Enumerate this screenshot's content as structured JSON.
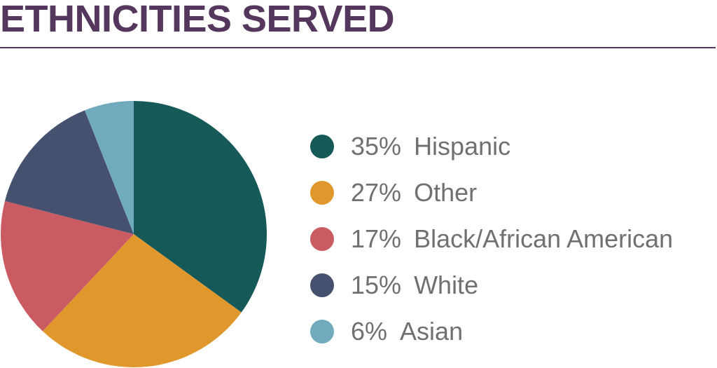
{
  "title": "ETHNICITIES SERVED",
  "colors": {
    "title": "#55365c",
    "rule": "#55365c",
    "legend_text": "#707070"
  },
  "chart_data": {
    "type": "pie",
    "title": "ETHNICITIES SERVED",
    "categories": [
      "Hispanic",
      "Other",
      "Black/African American",
      "White",
      "Asian"
    ],
    "values": [
      35,
      27,
      17,
      15,
      6
    ],
    "value_labels": [
      "35%",
      "27%",
      "17%",
      "15%",
      "6%"
    ],
    "colors": [
      "#155a58",
      "#e0982d",
      "#cb5b63",
      "#45516f",
      "#6faabd"
    ],
    "start_angle": "12 o'clock",
    "direction": "clockwise",
    "legend_position": "right"
  }
}
